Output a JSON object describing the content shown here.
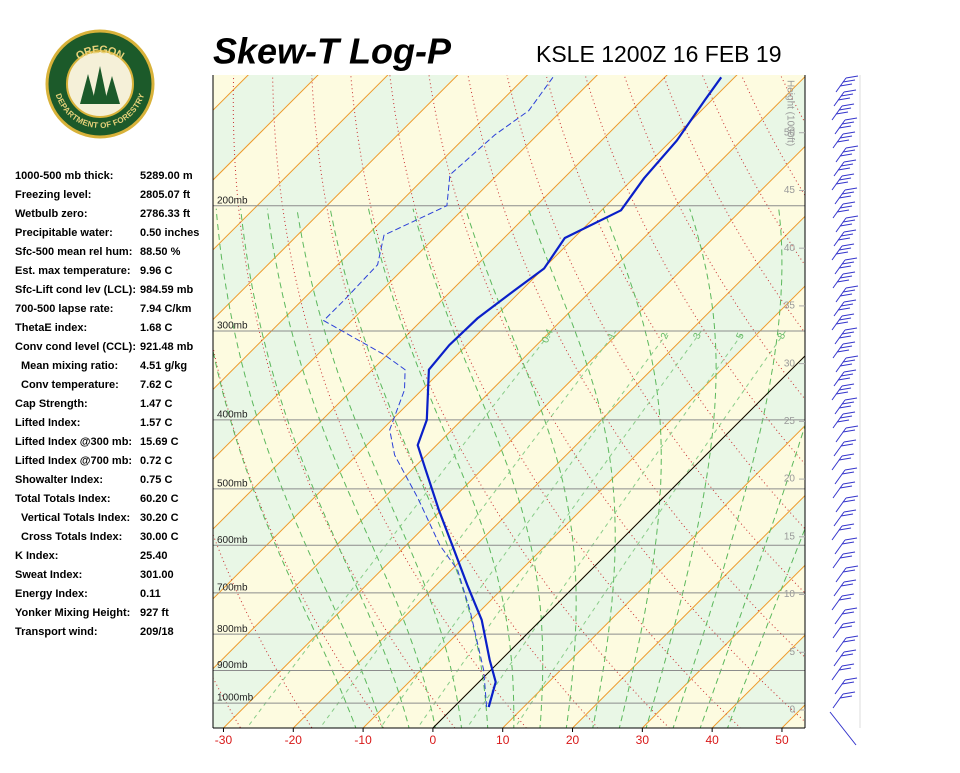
{
  "chart_data": {
    "type": "skew-t",
    "title": "Skew-T Log-P",
    "subtitle": "KSLE 1200Z 16 FEB 19",
    "logo": {
      "top": "OREGON",
      "bottom": "DEPARTMENT OF FORESTRY"
    },
    "stats": [
      {
        "label": "1000-500 mb thick:",
        "value": "5289.00 m"
      },
      {
        "label": "Freezing level:",
        "value": "2805.07 ft"
      },
      {
        "label": "Wetbulb zero:",
        "value": "2786.33 ft"
      },
      {
        "label": "Precipitable water:",
        "value": "0.50 inches"
      },
      {
        "label": "Sfc-500 mean rel hum:",
        "value": "88.50 %"
      },
      {
        "label": "Est. max temperature:",
        "value": "9.96 C"
      },
      {
        "label": "Sfc-Lift cond lev (LCL):",
        "value": "984.59 mb"
      },
      {
        "label": "700-500 lapse rate:",
        "value": "7.94 C/km"
      },
      {
        "label": "ThetaE index:",
        "value": "1.68 C"
      },
      {
        "label": "Conv cond level (CCL):",
        "value": "921.48 mb"
      },
      {
        "label": "Mean mixing ratio:",
        "value": "4.51 g/kg"
      },
      {
        "label": "Conv temperature:",
        "value": "7.62 C"
      },
      {
        "label": "Cap Strength:",
        "value": "1.47 C"
      },
      {
        "label": "Lifted Index:",
        "value": "1.57 C"
      },
      {
        "label": "Lifted Index @300 mb:",
        "value": "15.69 C"
      },
      {
        "label": "Lifted Index @700 mb:",
        "value": "0.72 C"
      },
      {
        "label": "Showalter Index:",
        "value": "0.75 C"
      },
      {
        "label": "Total Totals Index:",
        "value": "60.20 C"
      },
      {
        "label": "Vertical Totals Index:",
        "value": "30.20 C"
      },
      {
        "label": "Cross Totals Index:",
        "value": "30.00 C"
      },
      {
        "label": "K Index:",
        "value": "25.40"
      },
      {
        "label": "Sweat Index:",
        "value": "301.00"
      },
      {
        "label": "Energy Index:",
        "value": "0.11"
      },
      {
        "label": "Yonker Mixing Height:",
        "value": "927 ft"
      },
      {
        "label": "Transport wind:",
        "value": "209/18"
      }
    ],
    "xlim": [
      -31.5,
      53.3
    ],
    "xticks": [
      -30,
      -20,
      -10,
      0,
      10,
      20,
      30,
      40,
      50
    ],
    "plim": [
      1084,
      131
    ],
    "pressure_levels": [
      {
        "value": 1000,
        "label": "1000mb"
      },
      {
        "value": 900,
        "label": "900mb"
      },
      {
        "value": 800,
        "label": "800mb"
      },
      {
        "value": 700,
        "label": "700mb"
      },
      {
        "value": 600,
        "label": "600mb"
      },
      {
        "value": 500,
        "label": "500mb"
      },
      {
        "value": 400,
        "label": "400mb"
      },
      {
        "value": 300,
        "label": "300mb"
      },
      {
        "value": 200,
        "label": "200mb"
      }
    ],
    "y2label": "Height (1000ft)",
    "y2lim": [
      -1.56,
      55
    ],
    "y2ticks": [
      0,
      5,
      10,
      15,
      20,
      25,
      30,
      35,
      40,
      45,
      50
    ],
    "mixing_ratios": [
      0.4,
      1,
      2,
      3,
      5,
      8
    ],
    "series": [
      {
        "color": "#0a1fc8",
        "style": "solid",
        "pressure": [
          1013,
          934,
          870,
          764,
          683,
          610,
          536,
          467,
          434,
          400,
          340,
          314,
          288,
          263,
          245,
          222,
          203,
          183,
          162,
          142,
          132
        ],
        "values": [
          5.0,
          2.4,
          -1.6,
          -8.5,
          -15.5,
          -22.4,
          -30.3,
          -38.4,
          -42.7,
          -45.0,
          -51.9,
          -52.5,
          -52.3,
          -51.0,
          -49.9,
          -51.3,
          -47.2,
          -48.5,
          -49.2,
          -51.0,
          -51.9
        ]
      },
      {
        "color": "#2a3fd8",
        "style": "dashed",
        "pressure": [
          1013,
          899,
          740,
          650,
          600,
          515,
          448,
          413,
          363,
          340,
          324,
          290,
          271,
          242,
          220,
          200,
          181,
          159,
          147,
          131
        ],
        "values": [
          4.7,
          -1.0,
          -11.6,
          -19.1,
          -25.2,
          -35.1,
          -44.6,
          -48.9,
          -52.5,
          -55.3,
          -60.4,
          -74.0,
          -74.0,
          -74.3,
          -77.6,
          -72.8,
          -76.8,
          -76.1,
          -74.7,
          -76.1
        ]
      }
    ]
  }
}
